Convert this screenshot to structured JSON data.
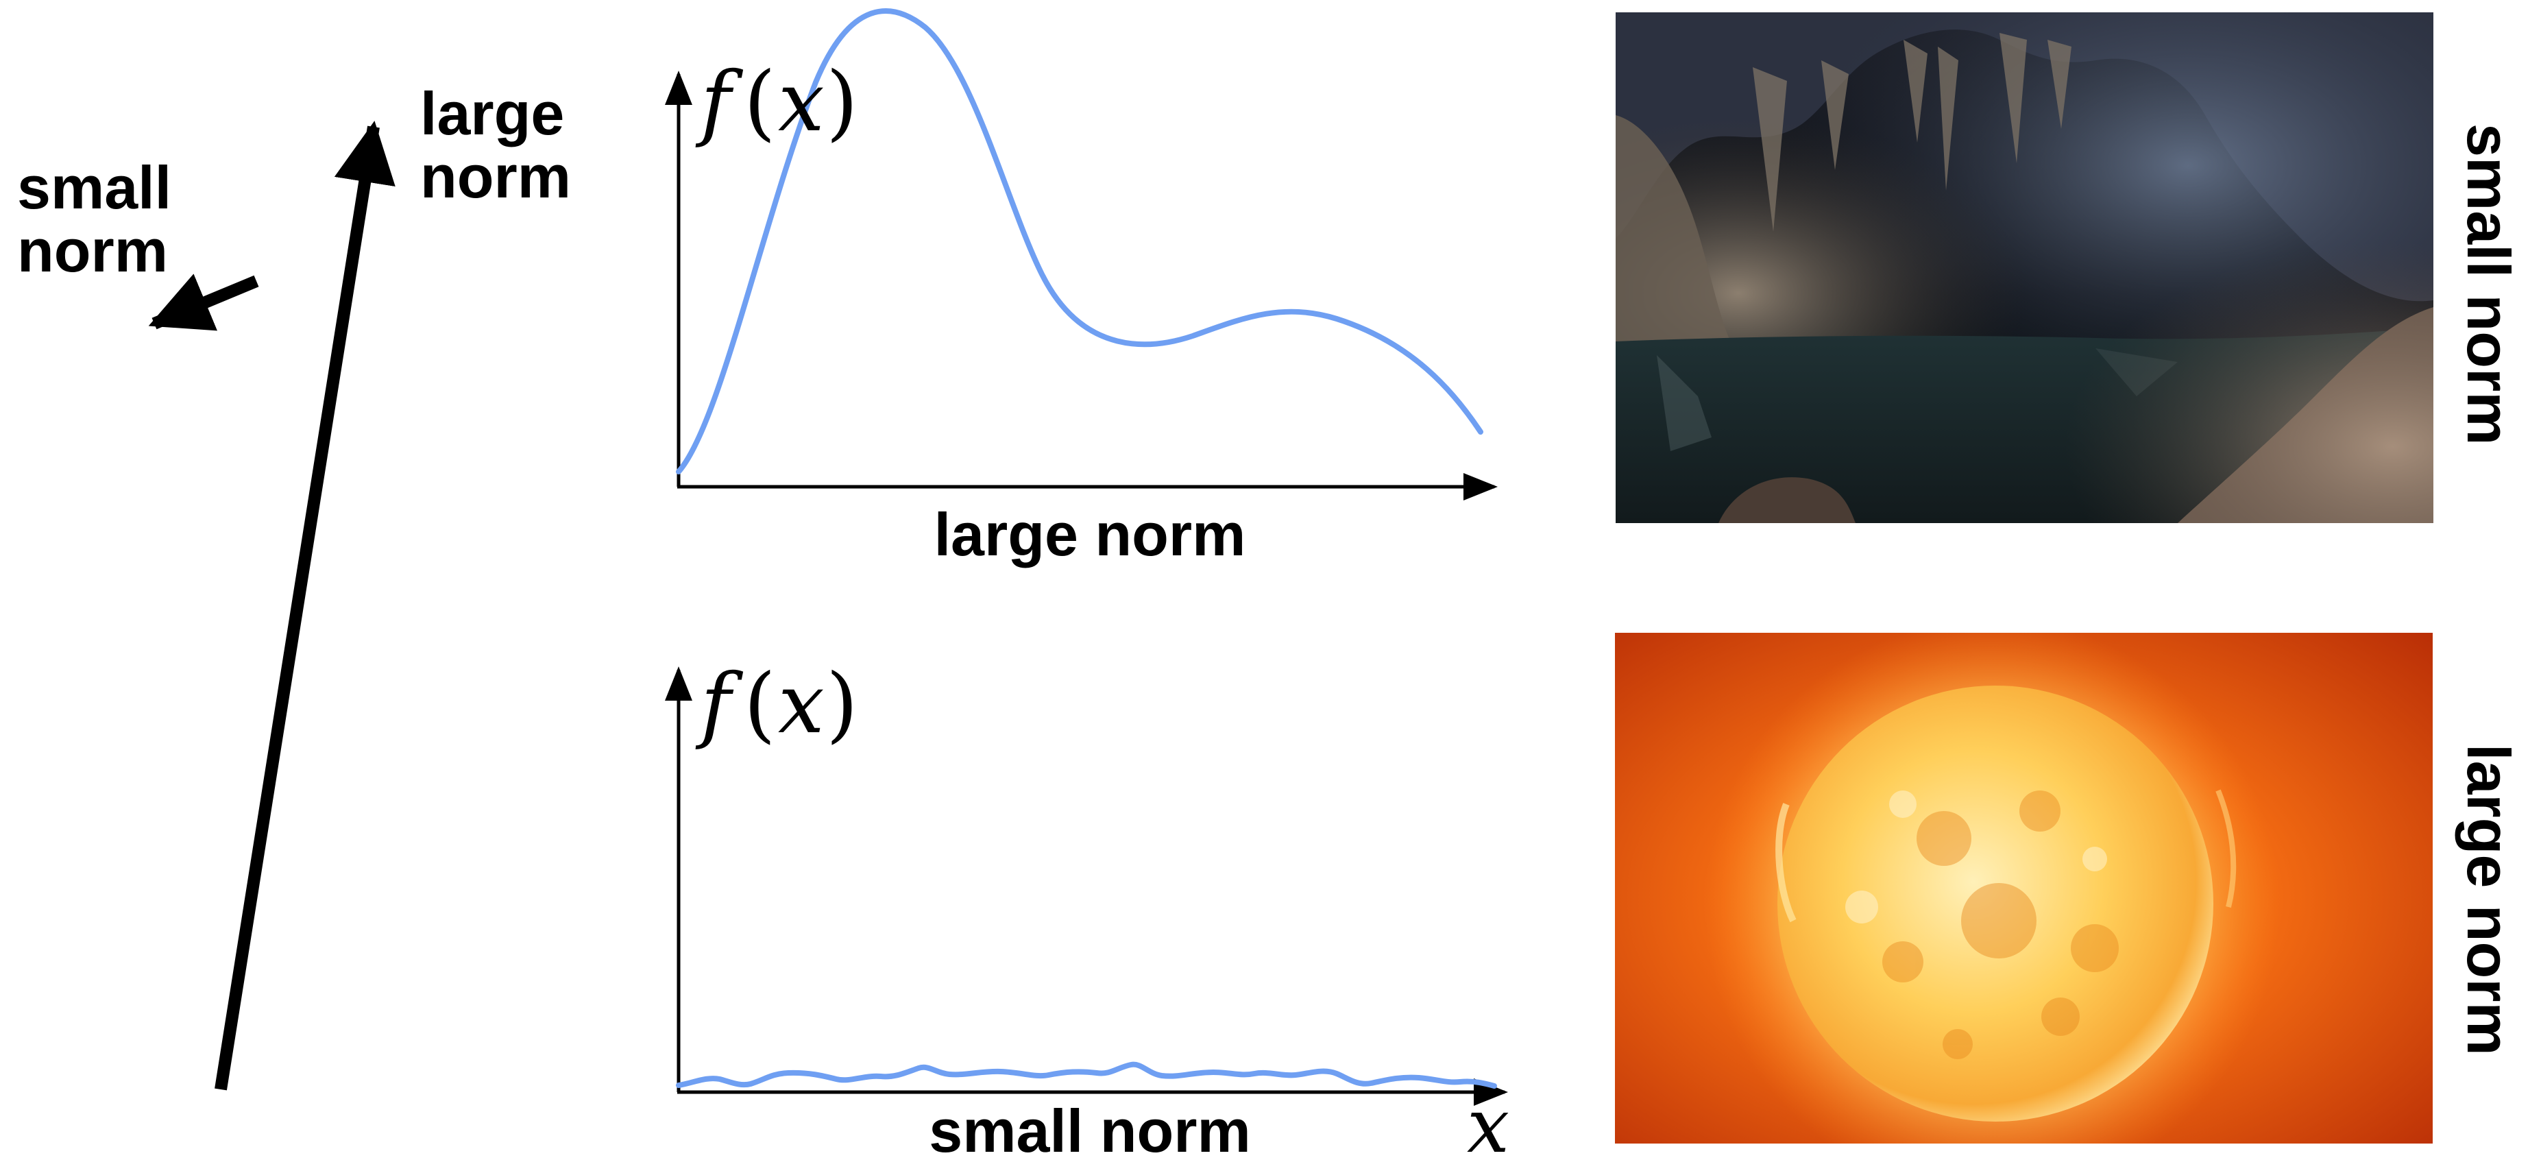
{
  "vectors": {
    "large": {
      "label_line1": "large",
      "label_line2": "norm"
    },
    "small": {
      "label_line1": "small",
      "label_line2": "norm"
    }
  },
  "plots": {
    "top": {
      "ylabel_f": "f",
      "ylabel_open": "(",
      "ylabel_x": "x",
      "ylabel_close": ")",
      "caption": "large norm"
    },
    "bottom": {
      "ylabel_f": "f",
      "ylabel_open": "(",
      "ylabel_x": "x",
      "ylabel_close": ")",
      "caption": "small norm",
      "xlabel": "x"
    }
  },
  "images": {
    "cave": {
      "side_label": "small norm"
    },
    "sun": {
      "side_label": "large norm"
    }
  },
  "colors": {
    "curve": "#6f9ff2",
    "ink": "#000000"
  }
}
